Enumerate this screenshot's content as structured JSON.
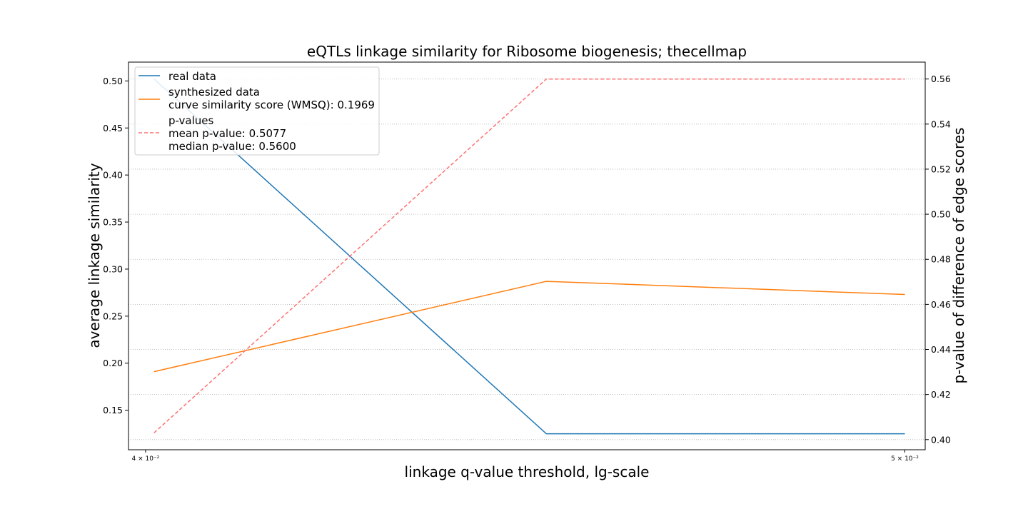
{
  "chart_data": {
    "type": "line",
    "title": "eQTLs linkage similarity for Ribosome biogenesis; thecellmap",
    "xlabel": "linkage q-value threshold, lg-scale",
    "ylabel": "average linkage similarity",
    "ylabel_right": "p-value of difference of edge scores",
    "x_scale": "log",
    "xlim": [
      0.0398,
      0.0503
    ],
    "ylim": [
      0.108,
      0.52
    ],
    "ylim_right": [
      0.3955,
      0.5675
    ],
    "x_ticks": [
      {
        "value": 0.04,
        "label": "4 × 10⁻²"
      },
      {
        "value": 0.05,
        "label": "5 × 10⁻²"
      }
    ],
    "y_ticks": [
      {
        "value": 0.15,
        "label": "0.15"
      },
      {
        "value": 0.2,
        "label": "0.20"
      },
      {
        "value": 0.25,
        "label": "0.25"
      },
      {
        "value": 0.3,
        "label": "0.30"
      },
      {
        "value": 0.35,
        "label": "0.35"
      },
      {
        "value": 0.4,
        "label": "0.40"
      },
      {
        "value": 0.45,
        "label": "0.45"
      },
      {
        "value": 0.5,
        "label": "0.50"
      }
    ],
    "y_ticks_right": [
      {
        "value": 0.4,
        "label": "0.40"
      },
      {
        "value": 0.42,
        "label": "0.42"
      },
      {
        "value": 0.44,
        "label": "0.44"
      },
      {
        "value": 0.46,
        "label": "0.46"
      },
      {
        "value": 0.48,
        "label": "0.48"
      },
      {
        "value": 0.5,
        "label": "0.50"
      },
      {
        "value": 0.52,
        "label": "0.52"
      },
      {
        "value": 0.54,
        "label": "0.54"
      },
      {
        "value": 0.56,
        "label": "0.56"
      }
    ],
    "grid": "horizontal dotted (right axis)",
    "legend_position": "top-left",
    "series": [
      {
        "name": "real data",
        "axis": "left",
        "color": "#1f77b4",
        "style": "solid",
        "x": [
          0.0401,
          0.045,
          0.05
        ],
        "y": [
          0.502,
          0.125,
          0.125
        ]
      },
      {
        "name": "synthesized data",
        "legend_extra": [
          "curve similarity score (WMSQ): 0.1969"
        ],
        "axis": "left",
        "color": "#ff7f0e",
        "style": "solid",
        "x": [
          0.0401,
          0.045,
          0.05
        ],
        "y": [
          0.191,
          0.287,
          0.273
        ]
      },
      {
        "name": "p-values",
        "legend_extra": [
          "mean p-value: 0.5077",
          "median p-value: 0.5600"
        ],
        "axis": "right",
        "color": "#ff7070",
        "style": "dashed",
        "x": [
          0.0401,
          0.045,
          0.05
        ],
        "y": [
          0.403,
          0.56,
          0.56
        ]
      }
    ]
  }
}
